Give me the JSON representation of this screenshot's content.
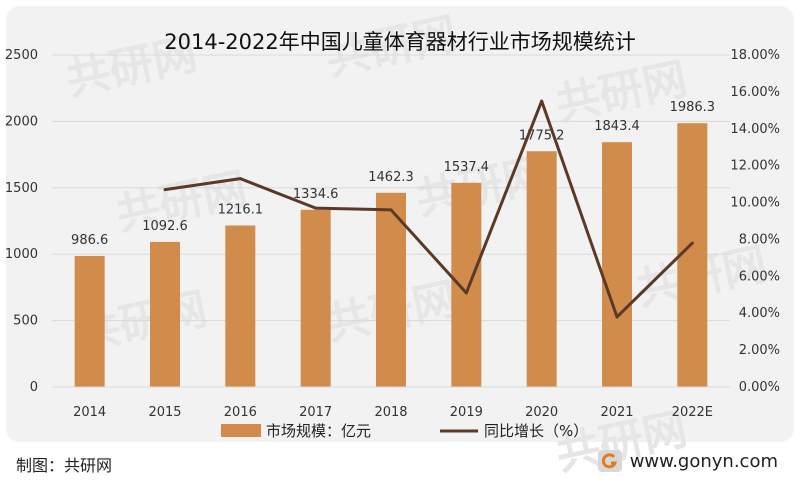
{
  "chart_data": {
    "type": "bar",
    "title": "2014-2022年中国儿童体育器材行业市场规模统计",
    "categories": [
      "2014",
      "2015",
      "2016",
      "2017",
      "2018",
      "2019",
      "2020",
      "2021",
      "2022E"
    ],
    "series": [
      {
        "name": "市场规模：亿元",
        "type": "bar",
        "axis": "left",
        "values": [
          986.6,
          1092.6,
          1216.1,
          1334.6,
          1462.3,
          1537.4,
          1775.2,
          1843.4,
          1986.3
        ],
        "labels": [
          "986.6",
          "1092.6",
          "1216.1",
          "1334.6",
          "1462.3",
          "1537.4",
          "1775.2",
          "1843.4",
          "1986.3"
        ]
      },
      {
        "name": "同比增长（%）",
        "type": "line",
        "axis": "right",
        "values": [
          null,
          10.7,
          11.3,
          9.7,
          9.6,
          5.1,
          15.5,
          3.8,
          7.8
        ]
      }
    ],
    "left_axis": {
      "min": 0,
      "max": 2500,
      "step": 500,
      "ticks": [
        "0",
        "500",
        "1000",
        "1500",
        "2000",
        "2500"
      ]
    },
    "right_axis": {
      "min": 0,
      "max": 18,
      "step": 2,
      "ticks": [
        "0.00%",
        "2.00%",
        "4.00%",
        "6.00%",
        "8.00%",
        "10.00%",
        "12.00%",
        "14.00%",
        "16.00%",
        "18.00%"
      ]
    },
    "gridlines": true,
    "legend_position": "bottom-center"
  },
  "colors": {
    "bar": "#d18b4a",
    "line": "#5a3a26",
    "grid": "#d9d9d9",
    "frame": "#f2f2f2"
  },
  "footer": {
    "source": "制图：共研网",
    "website": "www.gonyn.com"
  },
  "watermark": "共研网",
  "logo_icon": "gonyn-logo-icon"
}
